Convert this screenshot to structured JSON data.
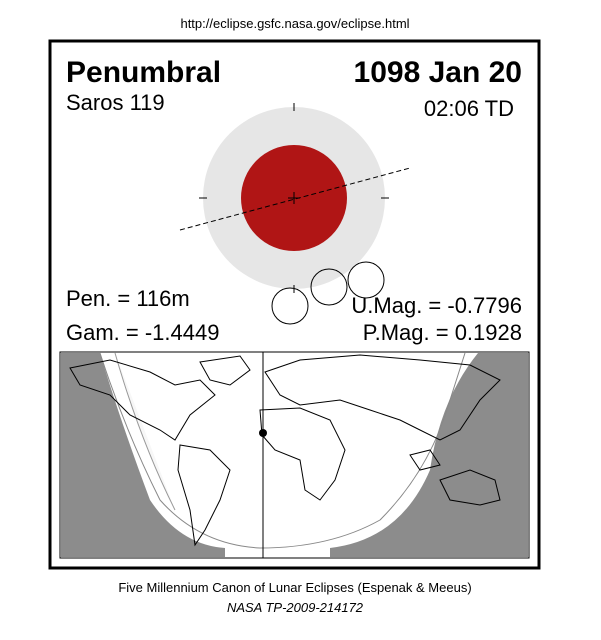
{
  "header": {
    "url": "http://eclipse.gsfc.nasa.gov/eclipse.html"
  },
  "panel": {
    "type": "Penumbral",
    "date": "1098 Jan 20",
    "saros": "Saros 119",
    "time": "02:06 TD",
    "pen": "Pen. = 116m",
    "gam": "Gam. = -1.4449",
    "umag": "U.Mag. = -0.7796",
    "pmag": "P.Mag. = 0.1928"
  },
  "footer": {
    "title": "Five Millennium Canon of Lunar Eclipses (Espenak & Meeus)",
    "ref": "NASA TP-2009-214172"
  }
}
